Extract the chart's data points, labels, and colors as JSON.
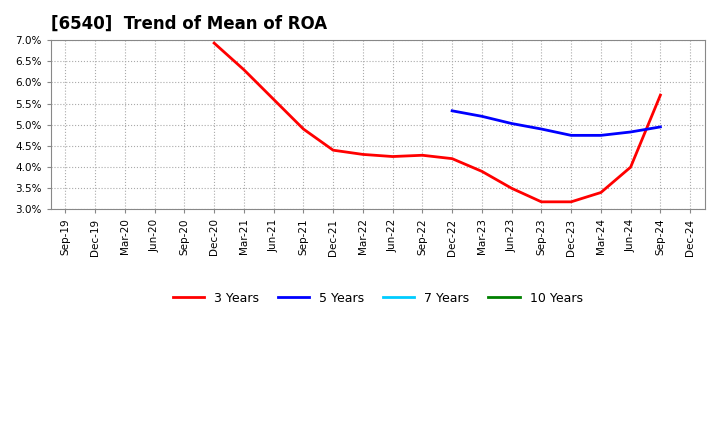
{
  "title": "[6540]  Trend of Mean of ROA",
  "background_color": "#ffffff",
  "plot_bg_color": "#ffffff",
  "grid_color": "#aaaaaa",
  "ylim": [
    0.03,
    0.07
  ],
  "yticks": [
    0.03,
    0.035,
    0.04,
    0.045,
    0.05,
    0.055,
    0.06,
    0.065,
    0.07
  ],
  "series": {
    "3years": {
      "color": "#ff0000",
      "label": "3 Years",
      "dates": [
        "Sep-19",
        "Dec-19",
        "Mar-20",
        "Jun-20",
        "Sep-20",
        "Dec-20",
        "Mar-21",
        "Jun-21",
        "Sep-21",
        "Dec-21",
        "Mar-22",
        "Jun-22",
        "Sep-22",
        "Dec-22",
        "Mar-23",
        "Jun-23",
        "Sep-23",
        "Dec-23",
        "Mar-24",
        "Jun-24",
        "Sep-24",
        "Dec-24"
      ],
      "values": [
        null,
        null,
        null,
        null,
        null,
        0.0693,
        0.063,
        0.056,
        0.049,
        0.044,
        0.043,
        0.0425,
        0.0428,
        0.042,
        0.039,
        0.035,
        0.0318,
        0.0318,
        0.034,
        0.04,
        0.057,
        null
      ]
    },
    "5years": {
      "color": "#0000ff",
      "label": "5 Years",
      "dates": [
        "Dec-22",
        "Mar-23",
        "Jun-23",
        "Sep-23",
        "Dec-23",
        "Mar-24",
        "Jun-24",
        "Sep-24",
        "Dec-24"
      ],
      "values": [
        0.0533,
        0.052,
        0.0503,
        0.049,
        0.0475,
        0.0475,
        0.0483,
        0.0495,
        null
      ]
    },
    "7years": {
      "color": "#00ccff",
      "label": "7 Years",
      "dates": [],
      "values": []
    },
    "10years": {
      "color": "#008000",
      "label": "10 Years",
      "dates": [],
      "values": []
    }
  },
  "xtick_labels": [
    "Sep-19",
    "Dec-19",
    "Mar-20",
    "Jun-20",
    "Sep-20",
    "Dec-20",
    "Mar-21",
    "Jun-21",
    "Sep-21",
    "Dec-21",
    "Mar-22",
    "Jun-22",
    "Sep-22",
    "Dec-22",
    "Mar-23",
    "Jun-23",
    "Sep-23",
    "Dec-23",
    "Mar-24",
    "Jun-24",
    "Sep-24",
    "Dec-24"
  ]
}
